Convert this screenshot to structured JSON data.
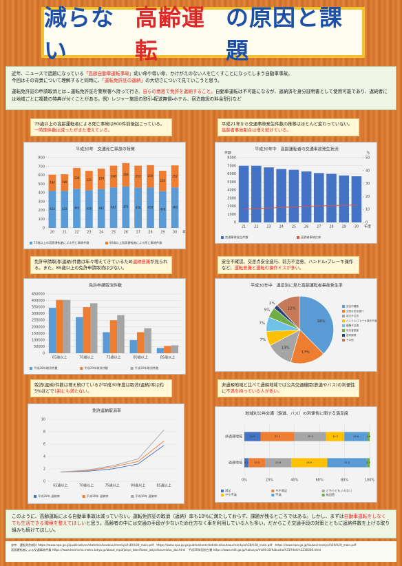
{
  "header": {
    "title": [
      {
        "text": "減らない",
        "em": false
      },
      {
        "text": "高齢運転",
        "em": true
      },
      {
        "text": "の原因と課題",
        "em": false
      }
    ]
  },
  "intro": {
    "paragraphs": [
      [
        {
          "text": "近年、ニュースで話題になっている",
          "em": false
        },
        {
          "text": "「高齢自動車運転事故」",
          "em": true
        },
        {
          "text": "幼い命や尊い命、かけがえのない人を亡くすことになってしまう自動車事故。",
          "em": false
        }
      ],
      [
        {
          "text": "今回はその背景について理解すると同時に、",
          "em": false
        },
        {
          "text": "「運転免許証の返納」",
          "em": true
        },
        {
          "text": "の大切さについて見ていこうと思う。",
          "em": false
        }
      ],
      [
        {
          "text": "運転免許証の申請取消とは…運転免許証を警察署へ持って行き、",
          "em": false
        },
        {
          "text": "自らの意思で免許を返納すること。",
          "em": true
        },
        {
          "text": "自動車運転は不可能になるが、返納済を身分証明書として使用可能であり、返納者には地域ごとに複数の特典が付くことがある。例）レジャー施設の割引・配送無償・ホテル、宿泊施設の料金割引など",
          "em": false
        }
      ]
    ]
  },
  "captions": [
    [
      {
        "text": "75歳以上の高齢運転者による死亡事故は600件前後起こっている。",
        "em": false
      },
      {
        "text": "一時期件数は減ったがまた増えている。",
        "em": true
      }
    ],
    [
      {
        "text": "平成21年から交通事故発生件数の推移はほとんど変わっていない。",
        "em": false
      },
      {
        "text": "高齢者事故割合は増え続けている。",
        "em": true
      }
    ],
    [
      {
        "text": "免許申請取消(返納)件数は年々増えてきているため",
        "em": false
      },
      {
        "text": "返納意識",
        "em": true
      },
      {
        "text": "が見られる。また、85歳以上の免許申請取消は少ない。",
        "em": false
      }
    ],
    [
      {
        "text": "安全不確認、交差点安全進行、前方不注意、ハンドル・ブレーキ操作など、",
        "em": false
      },
      {
        "text": "運転意識と運転の操作ミスが多い。",
        "em": true
      }
    ],
    [
      {
        "text": "取消(返納)件数は増え続けているが平成30年度は取消(返納)率は約5%ほどで",
        "em": false
      },
      {
        "text": "1割にも満たない。",
        "em": true
      }
    ],
    [
      {
        "text": "非過疎地域と比べて過疎地域では公共交通機関(鉄道やバス)の利便性に",
        "em": false
      },
      {
        "text": "不満を持っている人が多い。",
        "em": true
      }
    ]
  ],
  "chart_data": [
    {
      "type": "bar",
      "title": "平成30年　交通死亡事故の特徴",
      "stacked": true,
      "show_values": true,
      "categories": [
        "20",
        "21",
        "22",
        "23",
        "24",
        "25",
        "26",
        "27",
        "28",
        "29",
        "30"
      ],
      "x_label": "年度",
      "ylim": [
        0,
        800
      ],
      "yticks": [
        0,
        100,
        200,
        300,
        400,
        500,
        600,
        700,
        800
      ],
      "series": [
        {
          "name": "75歳以上の高齢運転者による死亡事故件数",
          "color": "#5b9bd5",
          "values": [
            423,
            422,
            445,
            429,
            442,
            461,
            471,
            458,
            459,
            418,
            460
          ]
        },
        {
          "name": "80歳以上高齢運転者による死亡事故件数",
          "color": "#ed7d31",
          "values": [
            184,
            189,
            238,
            221,
            234,
            248,
            268,
            251,
            256,
            233,
            252
          ]
        }
      ]
    },
    {
      "type": "bar",
      "title": "平成30年中　高齢運転者の交通事故発生状況",
      "stacked": false,
      "show_values": false,
      "categories": [
        "21",
        "22",
        "23",
        "24",
        "25",
        "26",
        "27",
        "28",
        "29",
        "30"
      ],
      "x_label": "年度",
      "y_label": "件数",
      "y2_label": "%",
      "ylim": [
        0,
        8000
      ],
      "yticks": [
        0,
        1000,
        2000,
        3000,
        4000,
        5000,
        6000,
        7000,
        8000
      ],
      "y2lim": [
        0,
        50
      ],
      "y2ticks": [
        0,
        10,
        20,
        30,
        40,
        50
      ],
      "series": [
        {
          "name": "交通事故発生件数",
          "color": "#4472c4",
          "values": [
            7000,
            7000,
            6800,
            6600,
            6500,
            6300,
            6100,
            6000,
            5800,
            5700
          ]
        },
        {
          "name": "高齢者事故比率",
          "color": "#e0524a",
          "axis": "y2",
          "mark": "line",
          "values": [
            10.2,
            10.6,
            11.1,
            11.6,
            12.0,
            12.4,
            12.8,
            13.0,
            13.3,
            13.5
          ]
        }
      ]
    },
    {
      "type": "bar",
      "title": "免許申請取消件数",
      "stacked": false,
      "show_values": false,
      "categories": [
        "65歳以上",
        "70歳以上",
        "75歳以上",
        "80歳以上",
        "85歳以上"
      ],
      "ylim": [
        0,
        450000
      ],
      "yticks": [
        0,
        50000,
        100000,
        150000,
        200000,
        250000,
        300000,
        350000,
        400000,
        450000
      ],
      "series": [
        {
          "name": "平成28年取消件数",
          "color": "#5b9bd5",
          "values": [
            345000,
            275000,
            160000,
            100000,
            40000
          ]
        },
        {
          "name": "平成29年取消件数",
          "color": "#ed7d31",
          "values": [
            405000,
            350000,
            250000,
            160000,
            55000
          ]
        },
        {
          "name": "平成30年取消件数",
          "color": "#a5a5a5",
          "values": [
            405000,
            380000,
            290000,
            190000,
            60000
          ]
        }
      ]
    },
    {
      "type": "pie",
      "title": "平成30年中　違反別に見た高齢運転者事故発生率",
      "categories": [
        "安全不確認",
        "交差点安全進行",
        "前方不注意",
        "ハンドル・ブレーキ操作不適",
        "動静不注視",
        "歩行者妨害",
        "信号無視",
        "その他"
      ],
      "values": [
        38,
        17,
        13,
        7,
        7,
        5,
        2,
        12
      ],
      "value_labels": [
        "38%",
        "17%",
        "13%",
        "7%",
        "7%",
        "5%",
        "2%",
        "12%"
      ],
      "colors": [
        "#5b9bd5",
        "#ed7d31",
        "#a5a5a5",
        "#ffc000",
        "#70c1e6",
        "#70ad47",
        "#264478",
        "#c67a5a"
      ]
    },
    {
      "type": "line",
      "title": "免許返納取消率",
      "categories": [
        "65歳以上",
        "70歳以上",
        "75歳以上",
        "80歳以上",
        "85歳以上"
      ],
      "ylim": [
        0,
        10
      ],
      "yticks": [
        0,
        2,
        4,
        6,
        8,
        10
      ],
      "series": [
        {
          "name": "平成28年 返納率",
          "color": "#4472c4",
          "values": [
            1.5,
            1.6,
            2.0,
            2.8,
            5.8
          ]
        },
        {
          "name": "平成29年 返納率",
          "color": "#ed7d31",
          "values": [
            1.5,
            1.7,
            2.3,
            3.2,
            6.5
          ]
        },
        {
          "name": "平成30年 返納率",
          "color": "#a5a5a5",
          "values": [
            1.5,
            1.8,
            2.5,
            3.6,
            8.3
          ]
        }
      ]
    },
    {
      "type": "bar",
      "orientation": "horizontal",
      "title": "地域別公共交通（鉄道、バス）の利便性に関する満足度",
      "stacked": true,
      "show_values": true,
      "categories": [
        "非過疎地域",
        "過疎地域"
      ],
      "xlim": [
        0,
        100
      ],
      "xticks": [
        {
          "value": 0,
          "label": "0%"
        },
        {
          "value": 20,
          "label": "20%"
        },
        {
          "value": 40,
          "label": "40%"
        },
        {
          "value": 60,
          "label": "60%"
        },
        {
          "value": 80,
          "label": "80%"
        },
        {
          "value": 100,
          "label": "100%"
        }
      ],
      "series": [
        {
          "name": "満足",
          "color": "#4472c4",
          "values": [
            12.9,
            3.2
          ]
        },
        {
          "name": "やや満足",
          "color": "#ed7d31",
          "values": [
            27.1,
            13.5
          ]
        },
        {
          "name": "どちらともいえない",
          "color": "#a5a5a5",
          "values": [
            25.3,
            20.6
          ]
        },
        {
          "name": "やや不満",
          "color": "#ffc000",
          "values": [
            14.5,
            28.9
          ]
        },
        {
          "name": "不満",
          "color": "#5b9bd5",
          "values": [
            18.6,
            31.5
          ]
        },
        {
          "name": "無回答",
          "color": "#70ad47",
          "values": [
            1.6,
            2.3
          ]
        }
      ]
    }
  ],
  "conclusion": [
    [
      {
        "text": "このように、高齢運転による自動車事故は減っていない。運転免許証の取消（返納）率も10％に満たしておらず、課題が残るところではある。しかし、まずは",
        "em": false
      },
      {
        "text": "自動車運転をしなくても生活できる環境を整えてほしい",
        "em": true
      },
      {
        "text": "と思う。高齢者の中には交通の手段が少ないため仕方なく車を利用している人も多い。だからこそ交通手段の対策とともに返納件数を上げる取り組みも続けてほしい。",
        "em": false
      }
    ]
  ],
  "sources": [
    "参考　運転免許統計 https://www.npa.go.jp/publications/statistics/koutsuu/menkyo/h30/h30_main.pdf　https://www.npa.go.jp/publications/statistics/koutsuu/menkyo/h28/h28_main.pdf　https://www.npa.go.jp/toukei/menkyo/h29/h29_main.pdf",
    "高齢運転者による交通事故件数 https://www.keishicho.metro.tokyo.jp/about_mpd/jokyo_tokei/tokei_jokyo/koureisha_jiko.html　平成30年国交白書 https://www.mlit.go.jp/hakusyo/mlit/h30/hakusho/h31/html/n1216000.html"
  ]
}
